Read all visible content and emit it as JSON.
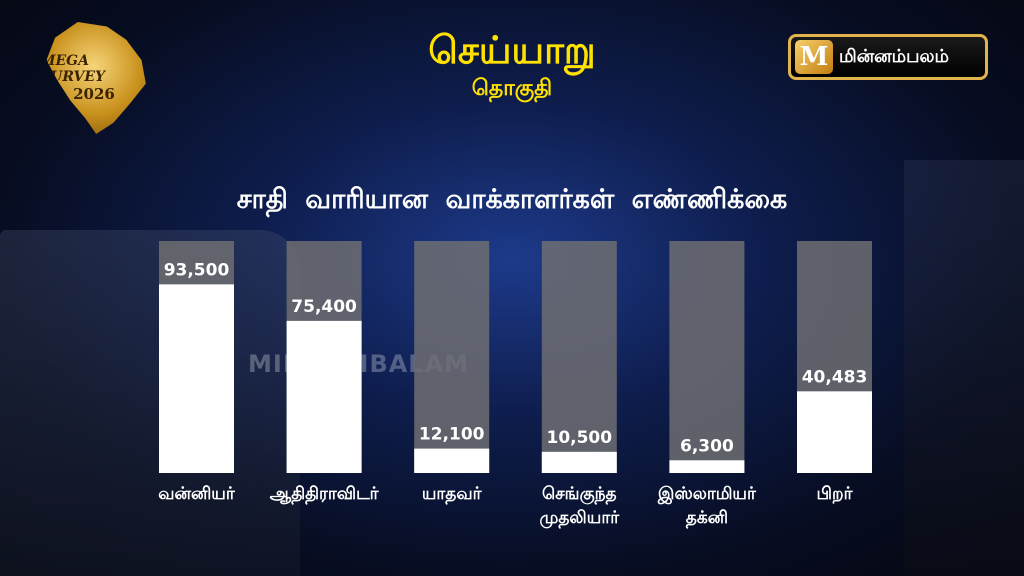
{
  "header": {
    "logo_line1": "MEGA SURVEY",
    "logo_line2": "2026",
    "title": "செய்யாறு",
    "subtitle": "தொகுதி",
    "brand_name": "மின்னம்பலம்",
    "brand_icon": "M",
    "watermark": "MINNAMBALAM"
  },
  "colors": {
    "accent": "#ffe100",
    "bar_fill": "#ffffff",
    "bar_track": "#6e6e72",
    "brand_border": "#e0b44a"
  },
  "chart_data": {
    "type": "bar",
    "title": "சாதி வாரியான வாக்காளர்கள் எண்ணிக்கை",
    "categories": [
      [
        "வன்னியர்"
      ],
      [
        "ஆதிதிராவிடர்"
      ],
      [
        "யாதவர்"
      ],
      [
        "செங்குந்த",
        "முதலியார்"
      ],
      [
        "இஸ்லாமியர்",
        "தக்னி"
      ],
      [
        "பிறர்"
      ]
    ],
    "values": [
      93500,
      75400,
      12100,
      10500,
      6300,
      40483
    ],
    "value_labels": [
      "93,500",
      "75,400",
      "12,100",
      "10,500",
      "6,300",
      "40,483"
    ],
    "ylim": [
      0,
      115000
    ],
    "grid": false,
    "legend": "none"
  }
}
